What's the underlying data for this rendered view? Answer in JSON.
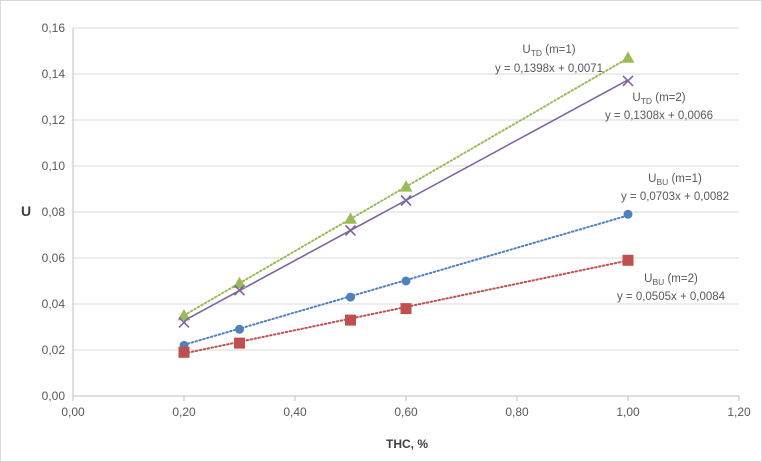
{
  "chart_data": {
    "type": "scatter",
    "title": "",
    "xlabel": "THC, %",
    "ylabel": "U",
    "xlim": [
      0,
      1.2
    ],
    "ylim": [
      0,
      0.16
    ],
    "x_ticks": [
      "0,00",
      "0,20",
      "0,40",
      "0,60",
      "0,80",
      "1,00",
      "1,20"
    ],
    "y_ticks": [
      "0,00",
      "0,02",
      "0,04",
      "0,06",
      "0,08",
      "0,10",
      "0,12",
      "0,14",
      "0,16"
    ],
    "grid": "horizontal",
    "legend": "none",
    "series": [
      {
        "name": "UTD (m=1)",
        "label_main": "U",
        "label_sub": "TD",
        "label_rest": " (m=1)",
        "x": [
          0.2,
          0.3,
          0.5,
          0.6,
          1.0
        ],
        "y": [
          0.035,
          0.049,
          0.077,
          0.091,
          0.147
        ],
        "marker": "triangle",
        "color": "#9bbb59",
        "trendline": "dotted",
        "equation": "y = 0,1398x + 0,0071",
        "slope": 0.1398,
        "intercept": 0.0071
      },
      {
        "name": "UTD (m=2)",
        "label_main": "U",
        "label_sub": "TD",
        "label_rest": " (m=2)",
        "x": [
          0.2,
          0.3,
          0.5,
          0.6,
          1.0
        ],
        "y": [
          0.032,
          0.046,
          0.072,
          0.085,
          0.137
        ],
        "marker": "x",
        "color": "#8064a2",
        "trendline": "solid",
        "equation": "y = 0,1308x + 0,0066",
        "slope": 0.1308,
        "intercept": 0.0066
      },
      {
        "name": "UBU (m=1)",
        "label_main": "U",
        "label_sub": "BU",
        "label_rest": " (m=1)",
        "x": [
          0.2,
          0.3,
          0.5,
          0.6,
          1.0
        ],
        "y": [
          0.022,
          0.029,
          0.043,
          0.05,
          0.079
        ],
        "marker": "circle",
        "color": "#4f81bd",
        "trendline": "dotted",
        "equation": "y = 0,0703x + 0,0082",
        "slope": 0.0703,
        "intercept": 0.0082
      },
      {
        "name": "UBU (m=2)",
        "label_main": "U",
        "label_sub": "BU",
        "label_rest": " (m=2)",
        "x": [
          0.2,
          0.3,
          0.5,
          0.6,
          1.0
        ],
        "y": [
          0.019,
          0.023,
          0.033,
          0.038,
          0.059
        ],
        "marker": "square",
        "color": "#c0504d",
        "trendline": "dotted",
        "equation": "y = 0,0505x + 0,0084",
        "slope": 0.0505,
        "intercept": 0.0084
      }
    ]
  }
}
